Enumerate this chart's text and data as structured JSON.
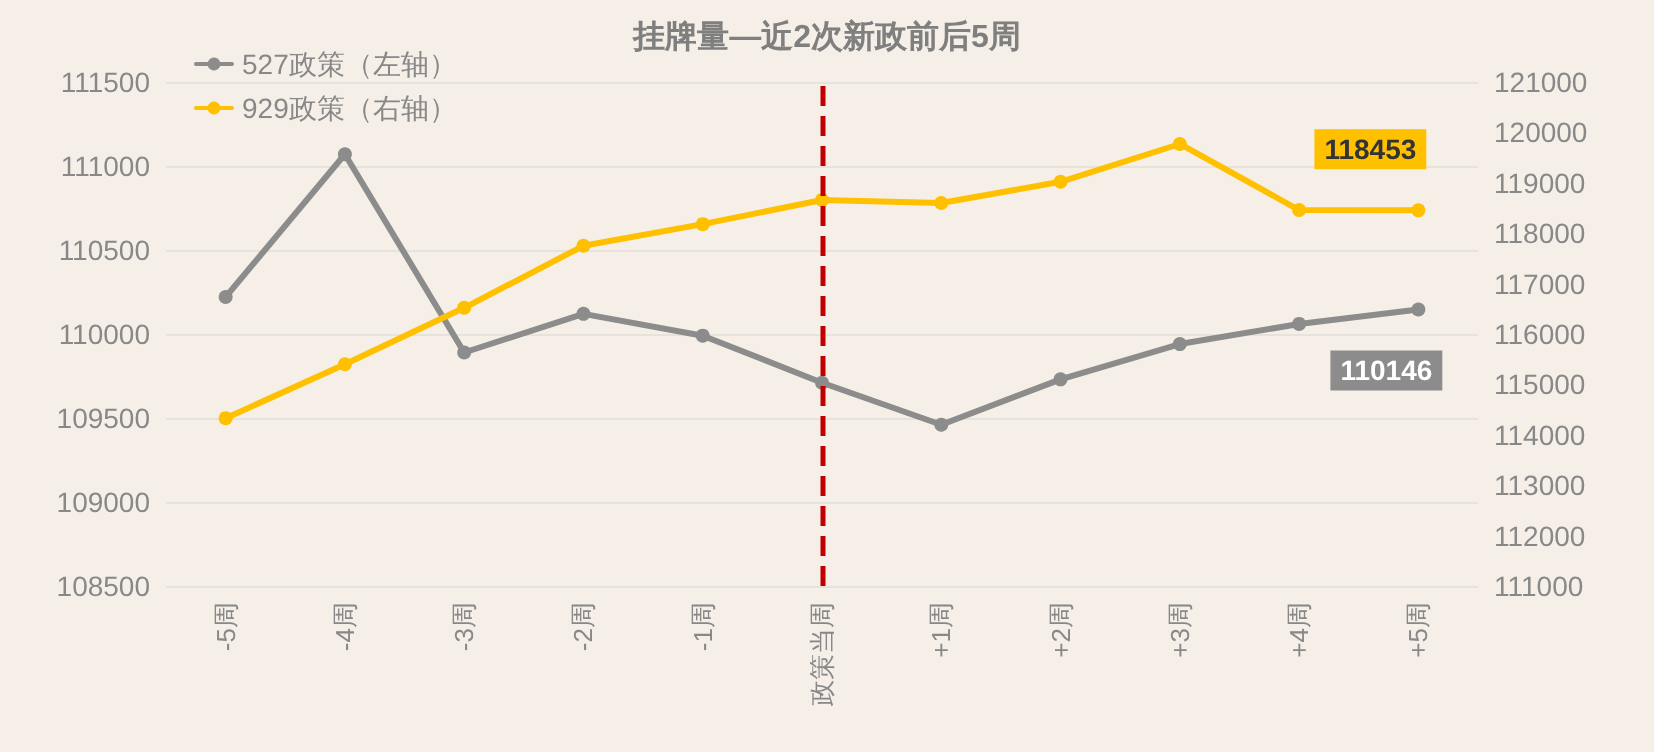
{
  "chart_data": {
    "type": "line",
    "title": "挂牌量—近2次新政前后5周",
    "categories": [
      "-5周",
      "-4周",
      "-3周",
      "-2周",
      "-1周",
      "政策当周",
      "+1周",
      "+2周",
      "+3周",
      "+4周",
      "+5周"
    ],
    "series": [
      {
        "name": "527政策（左轴）",
        "color": "#8c8c8c",
        "values": [
          110220,
          111070,
          109890,
          110120,
          109990,
          109710,
          109460,
          109730,
          109940,
          110060,
          110146
        ],
        "value_labels": [
          null,
          null,
          null,
          null,
          null,
          null,
          null,
          null,
          null,
          null,
          "110146"
        ]
      },
      {
        "name": "929政策（右轴）",
        "color": "#ffc000",
        "axis": "y2",
        "values": [
          114330,
          115400,
          116520,
          117750,
          118180,
          118660,
          118600,
          119020,
          119770,
          118460,
          118453
        ],
        "value_labels": [
          null,
          null,
          null,
          null,
          null,
          null,
          null,
          null,
          null,
          null,
          "118453"
        ]
      }
    ],
    "ylim": [
      108500,
      111500
    ],
    "yticks": [
      108500,
      109000,
      109500,
      110000,
      110500,
      111000,
      111500
    ],
    "y2lim": [
      111000,
      121000
    ],
    "y2ticks": [
      111000,
      112000,
      113000,
      114000,
      115000,
      116000,
      117000,
      118000,
      119000,
      120000,
      121000
    ],
    "ref_lines": [
      {
        "axis": "x",
        "value": "政策当周",
        "color": "#c00000",
        "line_style": "dashed"
      }
    ],
    "grid": "y",
    "legend": "top left",
    "marker": "circle",
    "line_style": "solid"
  }
}
